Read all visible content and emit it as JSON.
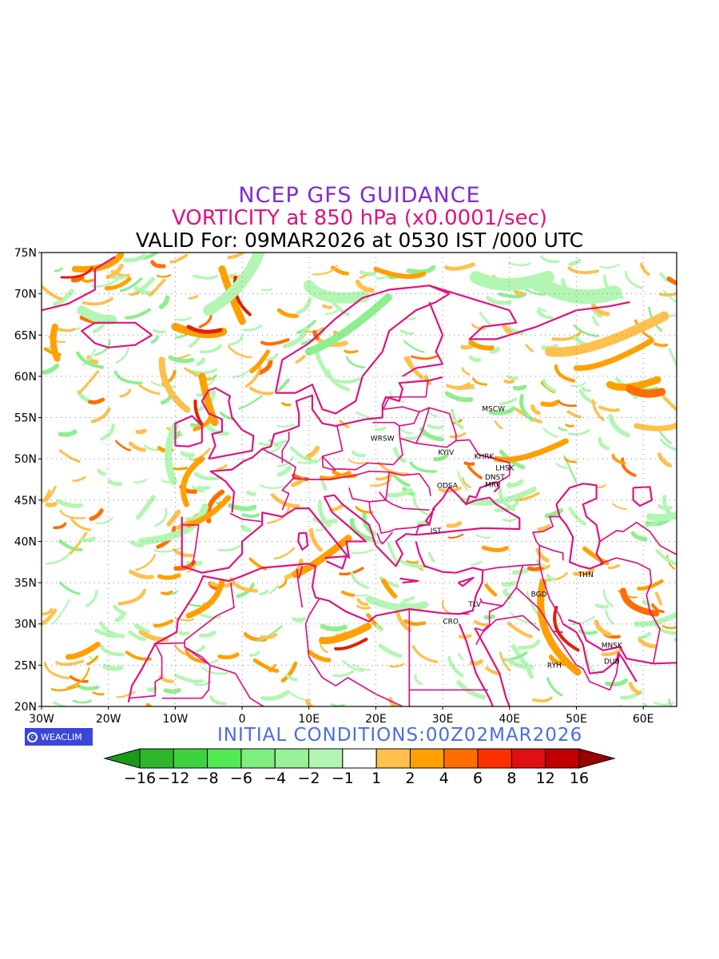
{
  "titles": {
    "line1": "NCEP GFS GUIDANCE",
    "line2": "VORTICITY at 850 hPa (x0.0001/sec)",
    "line3": "VALID For: 09MAR2026 at 0530 IST /000 UTC"
  },
  "initial_conditions": "INITIAL CONDITIONS:00Z02MAR2026",
  "logo": {
    "text": "WEACLIM",
    "icon": "copyright-ring-icon"
  },
  "axes": {
    "lat_labels": [
      "75N",
      "70N",
      "65N",
      "60N",
      "55N",
      "50N",
      "45N",
      "40N",
      "35N",
      "30N",
      "25N",
      "20N"
    ],
    "lat_values": [
      75,
      70,
      65,
      60,
      55,
      50,
      45,
      40,
      35,
      30,
      25,
      20
    ],
    "lon_labels": [
      "30W",
      "20W",
      "10W",
      "0",
      "10E",
      "20E",
      "30E",
      "40E",
      "50E",
      "60E"
    ],
    "lon_values": [
      -30,
      -20,
      -10,
      0,
      10,
      20,
      30,
      40,
      50,
      60
    ],
    "lon_range": [
      -30,
      65
    ],
    "lat_range": [
      20,
      75
    ],
    "grid": "dotted"
  },
  "cities": [
    {
      "name": "MSCW",
      "lon": 37.6,
      "lat": 55.8
    },
    {
      "name": "WRSW",
      "lon": 21.0,
      "lat": 52.2
    },
    {
      "name": "KYIV",
      "lon": 30.5,
      "lat": 50.5
    },
    {
      "name": "KHRK",
      "lon": 36.2,
      "lat": 50.0
    },
    {
      "name": "LHSK",
      "lon": 39.3,
      "lat": 48.6
    },
    {
      "name": "DNST",
      "lon": 37.8,
      "lat": 47.5
    },
    {
      "name": "MRP",
      "lon": 37.5,
      "lat": 46.6
    },
    {
      "name": "ODSA",
      "lon": 30.7,
      "lat": 46.5
    },
    {
      "name": "IST",
      "lon": 29.0,
      "lat": 41.0
    },
    {
      "name": "THN",
      "lon": 51.4,
      "lat": 35.7
    },
    {
      "name": "BGD",
      "lon": 44.4,
      "lat": 33.3
    },
    {
      "name": "TLV",
      "lon": 34.8,
      "lat": 32.1
    },
    {
      "name": "CRO",
      "lon": 31.2,
      "lat": 30.0
    },
    {
      "name": "MNSK",
      "lon": 55.3,
      "lat": 27.1
    },
    {
      "name": "RYH",
      "lon": 46.7,
      "lat": 24.7
    },
    {
      "name": "DUB",
      "lon": 55.3,
      "lat": 25.2
    }
  ],
  "colorbar": {
    "labels": [
      "−16",
      "−12",
      "−8",
      "−6",
      "−4",
      "−2",
      "−1",
      "1",
      "2",
      "4",
      "6",
      "8",
      "12",
      "16"
    ],
    "colors": [
      "#1a9a1a",
      "#2db52d",
      "#3fd23f",
      "#55e855",
      "#7fee7f",
      "#98f098",
      "#b3f6b3",
      "#ffffff",
      "#ffc04d",
      "#ffa000",
      "#ff6d00",
      "#ff3000",
      "#e01010",
      "#c00000",
      "#9a0000"
    ]
  },
  "field_colors": {
    "coast": "#e0127f",
    "pos_low": "#ffc04d",
    "pos_mid": "#ffa000",
    "pos_high": "#ff6d00",
    "pos_max": "#e02000",
    "neg_low": "#b3f6b3",
    "neg_mid": "#8fee8f"
  }
}
